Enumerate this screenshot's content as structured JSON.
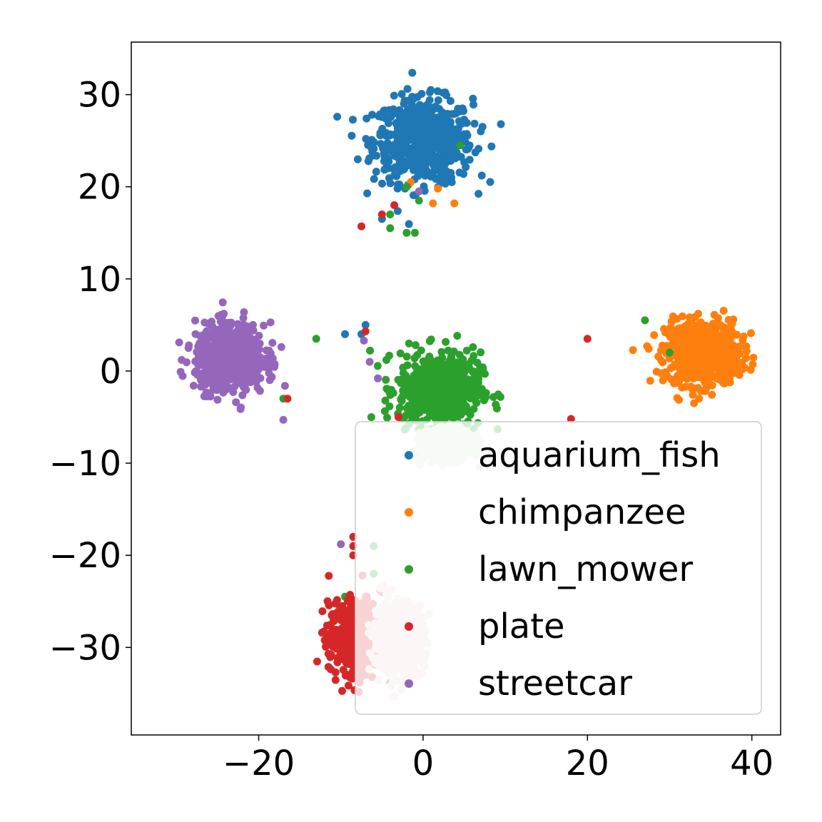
{
  "chart_data": {
    "type": "scatter",
    "title": "",
    "xlabel": "",
    "ylabel": "",
    "xlim": [
      -35.5,
      43.5
    ],
    "ylim": [
      -39.5,
      35.7
    ],
    "xticks": [
      {
        "value": -20,
        "label": "−20"
      },
      {
        "value": 0,
        "label": "0"
      },
      {
        "value": 20,
        "label": "20"
      },
      {
        "value": 40,
        "label": "40"
      }
    ],
    "yticks": [
      {
        "value": 30,
        "label": "30"
      },
      {
        "value": 20,
        "label": "20"
      },
      {
        "value": 10,
        "label": "10"
      },
      {
        "value": 0,
        "label": "0"
      },
      {
        "value": -10,
        "label": "−10"
      },
      {
        "value": -20,
        "label": "−20"
      },
      {
        "value": -30,
        "label": "−30"
      }
    ],
    "grid": false,
    "legend_position": "lower-right",
    "series": [
      {
        "name": "aquarium_fish",
        "color": "#1f77b4",
        "cluster": {
          "center": [
            0,
            25
          ],
          "spread": [
            6,
            4.5
          ]
        },
        "points": [
          [
            -7.5,
            4.0
          ],
          [
            -9.5,
            4.0
          ],
          [
            -7,
            5
          ],
          [
            -0.5,
            -9.0
          ],
          [
            -2.2,
            19.8
          ],
          [
            3.5,
            20.5
          ],
          [
            -5,
            16.5
          ]
        ]
      },
      {
        "name": "chimpanzee",
        "color": "#ff7f0e",
        "cluster": {
          "center": [
            34,
            2
          ],
          "spread": [
            4.5,
            3.5
          ]
        },
        "points": [
          [
            -1.5,
            20.5
          ],
          [
            1.8,
            19.8
          ],
          [
            1.2,
            18.2
          ],
          [
            3.8,
            18.2
          ],
          [
            -0.8,
            -9.0
          ],
          [
            -7,
            -24.5
          ]
        ]
      },
      {
        "name": "lawn_mower",
        "color": "#2ca02c",
        "cluster": {
          "center": [
            2,
            -2
          ],
          "spread": [
            5,
            4
          ]
        },
        "points": [
          [
            4.5,
            24.5
          ],
          [
            -2,
            20
          ],
          [
            -0.5,
            18.5
          ],
          [
            -4,
            15.5
          ],
          [
            -2,
            15
          ],
          [
            -1,
            15
          ],
          [
            -4,
            17
          ],
          [
            -13,
            3.5
          ],
          [
            -17,
            -3
          ],
          [
            27,
            5.5
          ],
          [
            30,
            2
          ],
          [
            -9.5,
            -24.5
          ],
          [
            -6,
            -19
          ],
          [
            -6,
            -22
          ],
          [
            -5,
            -24
          ]
        ]
      },
      {
        "name": "plate",
        "color": "#d62728",
        "cluster": {
          "center": [
            -8,
            -29
          ],
          "spread": [
            3.5,
            3.8
          ]
        },
        "points": [
          [
            -3.5,
            18
          ],
          [
            -5,
            17
          ],
          [
            -7.5,
            15.7
          ],
          [
            -7,
            4.3
          ],
          [
            -16.5,
            -3
          ],
          [
            20,
            3.5
          ],
          [
            18,
            -5.2
          ],
          [
            -3,
            -5
          ],
          [
            -8.5,
            -18
          ],
          [
            -8.5,
            -19
          ],
          [
            -8.5,
            -20
          ]
        ]
      },
      {
        "name": "streetcar",
        "color": "#9467bd",
        "cluster": {
          "center": [
            -23.5,
            1.5
          ],
          "spread": [
            4.2,
            3.6
          ]
        },
        "points": [
          [
            -0.5,
            19.5
          ],
          [
            -10,
            -18.8
          ],
          [
            -6.5,
            1.0
          ],
          [
            -7.2,
            3.3
          ],
          [
            -5.5,
            -0.8
          ],
          [
            -17,
            -5.3
          ]
        ]
      },
      {
        "name": "",
        "color": "#d2ead2",
        "cluster": {
          "center": [
            3,
            -8
          ],
          "spread": [
            3,
            1.6
          ]
        },
        "points": []
      },
      {
        "name": "",
        "color": "#f2d0d1",
        "cluster": {
          "center": [
            -3,
            -29
          ],
          "spread": [
            3,
            3.8
          ]
        },
        "points": []
      }
    ],
    "legend": {
      "entries": [
        "aquarium_fish",
        "chimpanzee",
        "lawn_mower",
        "plate",
        "streetcar"
      ],
      "colors": [
        "#1f77b4",
        "#ff7f0e",
        "#2ca02c",
        "#d62728",
        "#9467bd"
      ]
    }
  }
}
